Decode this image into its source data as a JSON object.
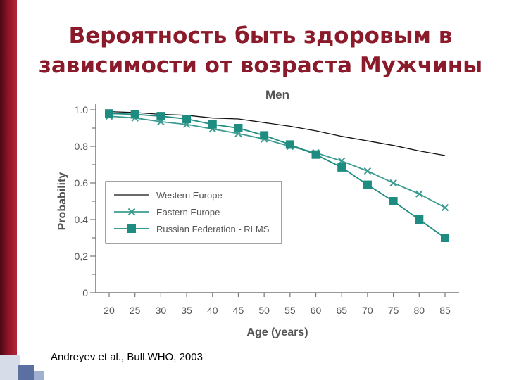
{
  "slide": {
    "title_line1": "Вероятность быть здоровым в",
    "title_line2": "зависимости от возраста Мужчины",
    "credit": "Andreyev et al., Bull.WHO, 2003"
  },
  "chart_data": {
    "type": "line",
    "title": "Men",
    "xlabel": "Age (years)",
    "ylabel": "Probability",
    "x": [
      20,
      25,
      30,
      35,
      40,
      45,
      50,
      55,
      60,
      65,
      70,
      75,
      80,
      85
    ],
    "ylim": [
      0,
      1.0
    ],
    "yticks": [
      0,
      0.2,
      0.4,
      0.6,
      0.8,
      1.0
    ],
    "ytick_labels": [
      "0",
      "0,2",
      "0.4",
      "0.6",
      "0.8",
      "1.0"
    ],
    "grid": false,
    "legend_position": "center-left",
    "series": [
      {
        "name": "Western Europe",
        "marker": "none",
        "color": "#111111",
        "values": [
          0.99,
          0.985,
          0.975,
          0.97,
          0.955,
          0.95,
          0.93,
          0.91,
          0.885,
          0.855,
          0.83,
          0.805,
          0.775,
          0.75
        ]
      },
      {
        "name": "Eastern Europe",
        "marker": "x",
        "color": "#3c9b91",
        "values": [
          0.965,
          0.955,
          0.935,
          0.92,
          0.895,
          0.87,
          0.84,
          0.8,
          0.765,
          0.72,
          0.665,
          0.6,
          0.54,
          0.465
        ]
      },
      {
        "name": "Russian Federation - RLMS",
        "marker": "square",
        "color": "#1e8c80",
        "values": [
          0.98,
          0.975,
          0.965,
          0.95,
          0.92,
          0.9,
          0.86,
          0.81,
          0.755,
          0.685,
          0.59,
          0.5,
          0.4,
          0.3
        ]
      }
    ]
  }
}
